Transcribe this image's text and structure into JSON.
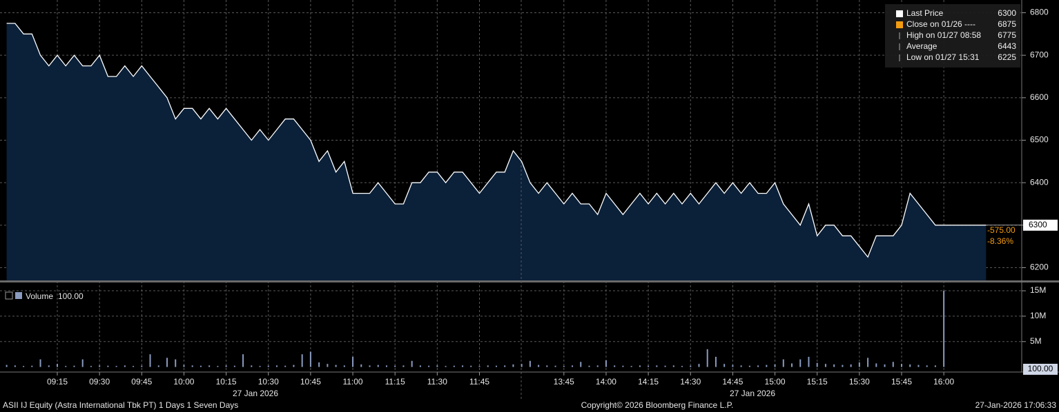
{
  "chart_data": {
    "type": "line",
    "security": "ASII IJ Equity (Astra International Tbk PT) 1 Days 1 Seven Days",
    "copyright": "Copyright© 2026 Bloomberg Finance L.P.",
    "timestamp": "27-Jan-2026 17:06:33",
    "date_labels": [
      "27 Jan 2026",
      "27 Jan 2026"
    ],
    "categories": [
      null,
      null,
      null,
      null,
      null,
      null,
      "09:15",
      null,
      null,
      null,
      null,
      "09:30",
      null,
      null,
      null,
      null,
      "09:45",
      null,
      null,
      null,
      null,
      "10:00",
      null,
      null,
      null,
      null,
      "10:15",
      null,
      null,
      null,
      null,
      "10:30",
      null,
      null,
      null,
      null,
      "10:45",
      null,
      null,
      null,
      null,
      "11:00",
      null,
      null,
      null,
      null,
      "11:15",
      null,
      null,
      null,
      null,
      "11:30",
      null,
      null,
      null,
      null,
      "11:45",
      null,
      null,
      null,
      null,
      null,
      null,
      null,
      null,
      null,
      "13:45",
      null,
      null,
      null,
      null,
      "14:00",
      null,
      null,
      null,
      null,
      "14:15",
      null,
      null,
      null,
      null,
      "14:30",
      null,
      null,
      null,
      null,
      "14:45",
      null,
      null,
      null,
      null,
      "15:00",
      null,
      null,
      null,
      null,
      "15:15",
      null,
      null,
      null,
      null,
      "15:30",
      null,
      null,
      null,
      null,
      "15:45",
      null,
      null,
      null,
      null,
      "16:00",
      null,
      null,
      null,
      null,
      null
    ],
    "series": [
      {
        "name": "Last Price",
        "color": "#ffffff",
        "fill": "#0b2039",
        "values": [
          6775,
          6775,
          6750,
          6750,
          6700,
          6675,
          6700,
          6675,
          6700,
          6675,
          6675,
          6700,
          6650,
          6650,
          6675,
          6650,
          6675,
          6650,
          6625,
          6600,
          6550,
          6575,
          6575,
          6550,
          6575,
          6550,
          6575,
          6550,
          6525,
          6500,
          6525,
          6500,
          6525,
          6550,
          6550,
          6525,
          6500,
          6450,
          6475,
          6425,
          6450,
          6375,
          6375,
          6375,
          6400,
          6375,
          6350,
          6350,
          6400,
          6400,
          6425,
          6425,
          6400,
          6425,
          6425,
          6400,
          6375,
          6400,
          6425,
          6425,
          6475,
          6450,
          6400,
          6375,
          6400,
          6375,
          6350,
          6375,
          6350,
          6350,
          6325,
          6375,
          6350,
          6325,
          6350,
          6375,
          6350,
          6375,
          6350,
          6375,
          6350,
          6375,
          6350,
          6375,
          6400,
          6375,
          6400,
          6375,
          6400,
          6375,
          6375,
          6400,
          6350,
          6325,
          6300,
          6350,
          6275,
          6300,
          6300,
          6275,
          6275,
          6250,
          6225,
          6275,
          6275,
          6275,
          6300,
          6375,
          6350,
          6325,
          6300,
          6300,
          6300,
          6300,
          6300,
          6300,
          6300
        ]
      }
    ],
    "ylim": [
      6170,
      6830
    ],
    "yticks": [
      6200,
      6300,
      6400,
      6500,
      6600,
      6700,
      6800
    ],
    "grid": true,
    "legend": [
      {
        "label": "Last Price",
        "value": 6300,
        "color": "#ffffff"
      },
      {
        "label": "Close on 01/26 ----",
        "value": 6875,
        "color": "#f39c12"
      },
      {
        "label": "High on 01/27 08:58",
        "value": 6775,
        "color": "#aaaaaa"
      },
      {
        "label": "Average",
        "value": 6443,
        "color": "#aaaaaa"
      },
      {
        "label": "Low on 01/27 15:31",
        "value": 6225,
        "color": "#aaaaaa"
      }
    ],
    "change": {
      "value": -575,
      "label": "-575.00"
    },
    "change_pct": {
      "value": -8.36,
      "label": "-8.36%"
    },
    "volume": {
      "name": "Volume",
      "reading": "100.00",
      "color": "#8a9bbf",
      "values": [
        400000,
        300000,
        200000,
        250000,
        1500000,
        300000,
        600000,
        200000,
        250000,
        1500000,
        200000,
        300000,
        250000,
        200000,
        300000,
        200000,
        250000,
        2500000,
        300000,
        1800000,
        1500000,
        400000,
        300000,
        250000,
        300000,
        200000,
        300000,
        250000,
        2500000,
        300000,
        200000,
        250000,
        300000,
        250000,
        400000,
        2500000,
        3000000,
        900000,
        600000,
        400000,
        300000,
        2000000,
        500000,
        300000,
        400000,
        300000,
        250000,
        300000,
        1200000,
        300000,
        250000,
        300000,
        200000,
        250000,
        300000,
        250000,
        200000,
        300000,
        250000,
        300000,
        500000,
        600000,
        1200000,
        400000,
        300000,
        250000,
        200000,
        300000,
        1000000,
        250000,
        300000,
        1300000,
        300000,
        250000,
        200000,
        300000,
        250000,
        300000,
        250000,
        300000,
        200000,
        250000,
        600000,
        3500000,
        2000000,
        600000,
        400000,
        300000,
        250000,
        300000,
        400000,
        500000,
        1500000,
        700000,
        1500000,
        2000000,
        800000,
        600000,
        500000,
        400000,
        500000,
        900000,
        1800000,
        700000,
        500000,
        1000000,
        600000,
        500000,
        400000,
        300000,
        300000,
        15000000,
        null,
        null,
        null,
        null,
        null
      ],
      "ylim": [
        -1000000,
        16500000
      ],
      "yticks": [
        {
          "value": 5000000,
          "label": "5M"
        },
        {
          "value": 10000000,
          "label": "10M"
        },
        {
          "value": 15000000,
          "label": "15M"
        }
      ]
    }
  }
}
